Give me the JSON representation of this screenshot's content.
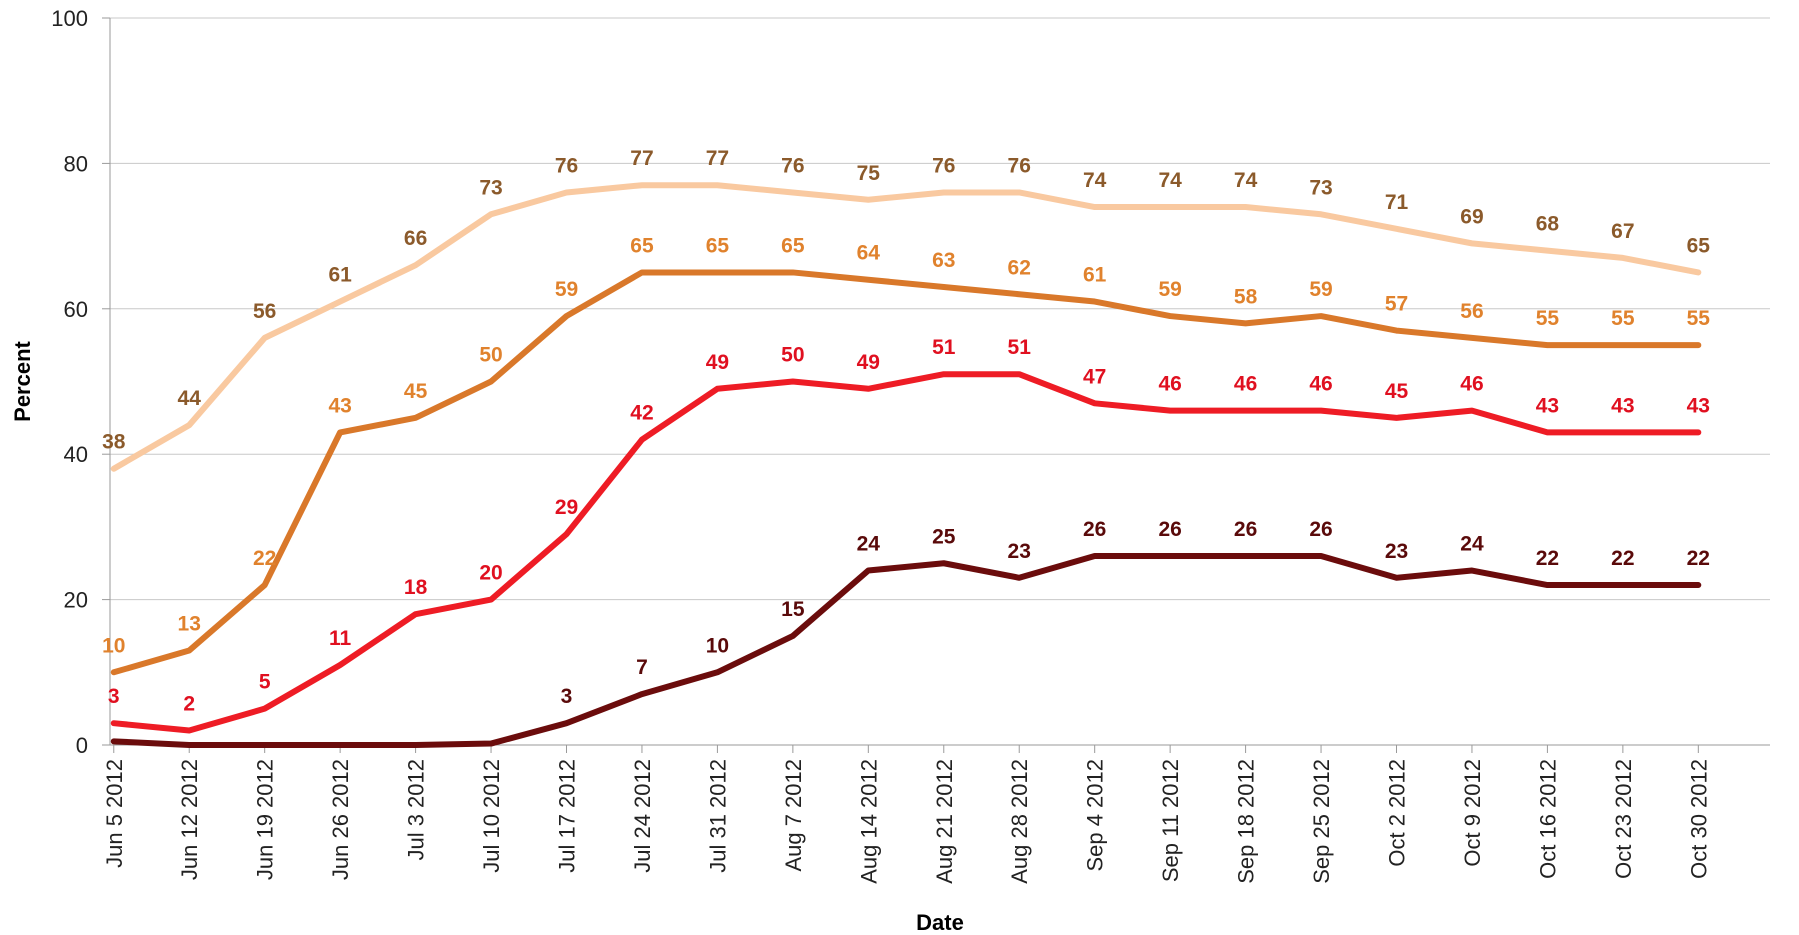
{
  "chart_data": {
    "type": "line",
    "xlabel": "Date",
    "ylabel": "Percent",
    "ylim": [
      0,
      100
    ],
    "yticks": [
      0,
      20,
      40,
      60,
      80,
      100
    ],
    "grid": "horizontal",
    "categories": [
      "Jun 5 2012",
      "Jun 12 2012",
      "Jun 19 2012",
      "Jun 26 2012",
      "Jul 3 2012",
      "Jul 10 2012",
      "Jul 17 2012",
      "Jul 24 2012",
      "Jul 31 2012",
      "Aug 7 2012",
      "Aug 14 2012",
      "Aug 21 2012",
      "Aug 28 2012",
      "Sep 4 2012",
      "Sep 11 2012",
      "Sep 18 2012",
      "Sep 25 2012",
      "Oct 2 2012",
      "Oct 9 2012",
      "Oct 16 2012",
      "Oct 23 2012",
      "Oct 30 2012"
    ],
    "series": [
      {
        "color": "#f9c9a0",
        "label_color": "#8b5a2b",
        "values": [
          38,
          44,
          56,
          61,
          66,
          73,
          76,
          77,
          77,
          76,
          75,
          76,
          76,
          74,
          74,
          74,
          73,
          71,
          69,
          68,
          67,
          65
        ]
      },
      {
        "color": "#d9782a",
        "label_color": "#e0822d",
        "values": [
          10,
          13,
          22,
          43,
          45,
          50,
          59,
          65,
          65,
          65,
          64,
          63,
          62,
          61,
          59,
          58,
          59,
          57,
          56,
          55,
          55,
          55
        ]
      },
      {
        "color": "#ee1c25",
        "label_color": "#e01020",
        "values": [
          3,
          2,
          5,
          11,
          18,
          20,
          29,
          42,
          49,
          50,
          49,
          51,
          51,
          47,
          46,
          46,
          46,
          45,
          46,
          43,
          43,
          43
        ]
      },
      {
        "color": "#6b0c0c",
        "label_color": "#5a0a0a",
        "values": [
          0.5,
          0,
          0,
          0,
          0,
          0.2,
          3,
          7,
          10,
          15,
          24,
          25,
          23,
          26,
          26,
          26,
          26,
          23,
          24,
          22,
          22,
          22
        ],
        "labels": [
          null,
          null,
          null,
          null,
          null,
          null,
          "3",
          "7",
          "10",
          "15",
          "24",
          "25",
          "23",
          "26",
          "26",
          "26",
          "26",
          "23",
          "24",
          "22",
          "22",
          "22"
        ]
      }
    ]
  }
}
